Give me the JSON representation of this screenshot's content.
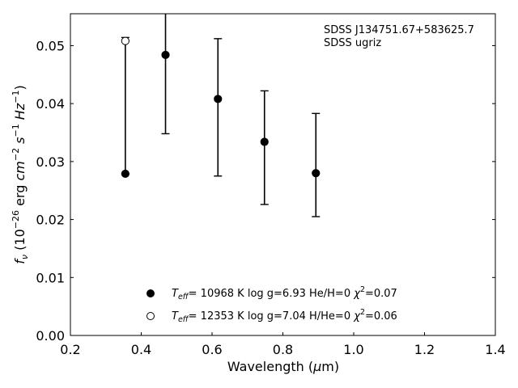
{
  "chart_data": {
    "type": "scatter",
    "annotation_lines": [
      "SDSS J134751.67+583625.7",
      "SDSS ugriz"
    ],
    "xlim": [
      0.2,
      1.4
    ],
    "ylim": [
      0.0,
      0.0555
    ],
    "x_ticks": [
      0.2,
      0.4,
      0.6,
      0.8,
      1.0,
      1.2,
      1.4
    ],
    "x_tick_labels": [
      "0.2",
      "0.4",
      "0.6",
      "0.8",
      "1.0",
      "1.2",
      "1.4"
    ],
    "y_ticks": [
      0.0,
      0.01,
      0.02,
      0.03,
      0.04,
      0.05
    ],
    "y_tick_labels": [
      "0.00",
      "0.01",
      "0.02",
      "0.03",
      "0.04",
      "0.05"
    ],
    "grid": false,
    "legend_position": "bottom-center",
    "observed": {
      "x": [
        0.3551,
        0.4686,
        0.6166,
        0.748,
        0.8932
      ],
      "y": [
        0.0279,
        0.0484,
        0.0408,
        0.0334,
        0.028
      ],
      "y_err_low": [
        0.0279,
        0.0348,
        0.0275,
        0.0226,
        0.0205
      ],
      "y_err_high": [
        0.0514,
        0.0564,
        0.0512,
        0.0422,
        0.0383
      ]
    },
    "series": [
      {
        "name": "T_eff= 10968 K  log g=6.93  He/H=0  χ²=0.07",
        "marker": "filled-circle",
        "x": [
          0.3551,
          0.4686,
          0.6166,
          0.748,
          0.8932
        ],
        "y": [
          0.0279,
          0.0484,
          0.0408,
          0.0334,
          0.028
        ]
      },
      {
        "name": "T_eff= 12353 K  log g=7.04  H/He=0  χ²=0.06",
        "marker": "open-circle",
        "x": [
          0.3551
        ],
        "y": [
          0.0508
        ]
      }
    ]
  },
  "labels": {
    "xlabel_pre": "Wavelength (",
    "xlabel_mu": "μ",
    "xlabel_post": "m)",
    "ylabel_f": "f",
    "ylabel_nu": "ν",
    "ylabel_mid": " (10",
    "ylabel_exp": "−26",
    "ylabel_erg": " erg ",
    "ylabel_cm": "cm",
    "ylabel_cmexp": "−2",
    "ylabel_s": " s",
    "ylabel_sexp": "−1",
    "ylabel_hz": " Hz",
    "ylabel_hzexp": "−1",
    "ylabel_close": ")",
    "legend": [
      {
        "t": "T",
        "sub": "eff",
        "mid": "= 10968 K  log g=6.93  He/H=0  ",
        "chi": "χ",
        "sup": "2",
        "end": "=0.07"
      },
      {
        "t": "T",
        "sub": "eff",
        "mid": "= 12353 K  log g=7.04  H/He=0  ",
        "chi": "χ",
        "sup": "2",
        "end": "=0.06"
      }
    ]
  }
}
